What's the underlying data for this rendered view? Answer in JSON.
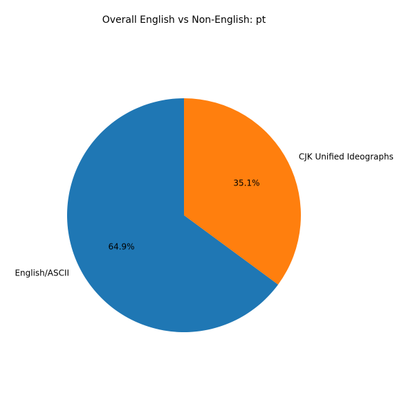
{
  "chart_data": {
    "type": "pie",
    "title": "Overall English vs Non-English: pt",
    "start_angle_deg": 90,
    "direction": "counterclockwise",
    "slices": [
      {
        "label": "English/ASCII",
        "value": 64.9,
        "pct_label": "64.9%",
        "color": "#1f77b4"
      },
      {
        "label": "CJK Unified Ideographs",
        "value": 35.1,
        "pct_label": "35.1%",
        "color": "#ff7f0e"
      }
    ]
  }
}
